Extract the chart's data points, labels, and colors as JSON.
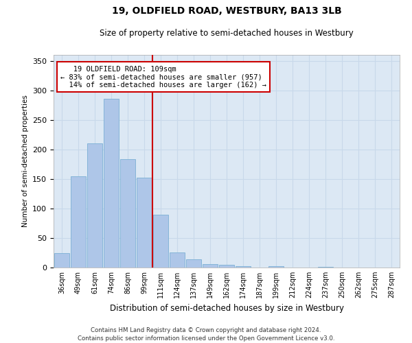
{
  "title": "19, OLDFIELD ROAD, WESTBURY, BA13 3LB",
  "subtitle": "Size of property relative to semi-detached houses in Westbury",
  "xlabel": "Distribution of semi-detached houses by size in Westbury",
  "ylabel": "Number of semi-detached properties",
  "footnote1": "Contains HM Land Registry data © Crown copyright and database right 2024.",
  "footnote2": "Contains public sector information licensed under the Open Government Licence v3.0.",
  "annotation_line1": "   19 OLDFIELD ROAD: 109sqm",
  "annotation_line2": "← 83% of semi-detached houses are smaller (957)",
  "annotation_line3": "  14% of semi-detached houses are larger (162) →",
  "bar_labels": [
    "36sqm",
    "49sqm",
    "61sqm",
    "74sqm",
    "86sqm",
    "99sqm",
    "111sqm",
    "124sqm",
    "137sqm",
    "149sqm",
    "162sqm",
    "174sqm",
    "187sqm",
    "199sqm",
    "212sqm",
    "224sqm",
    "237sqm",
    "250sqm",
    "262sqm",
    "275sqm",
    "287sqm"
  ],
  "bar_values": [
    24,
    155,
    210,
    286,
    184,
    152,
    90,
    25,
    14,
    6,
    5,
    2,
    0,
    2,
    0,
    0,
    1,
    0,
    0,
    0,
    0
  ],
  "bar_color": "#aec6e8",
  "bar_edgecolor": "#7aafd4",
  "grid_color": "#c8d8ea",
  "background_color": "#dce8f4",
  "vline_color": "#cc0000",
  "annotation_box_edgecolor": "#cc0000",
  "ylim": [
    0,
    360
  ],
  "yticks": [
    0,
    50,
    100,
    150,
    200,
    250,
    300,
    350
  ],
  "property_bin_index": 6,
  "vline_bar_index": 6,
  "title_fontsize": 10,
  "subtitle_fontsize": 8.5
}
